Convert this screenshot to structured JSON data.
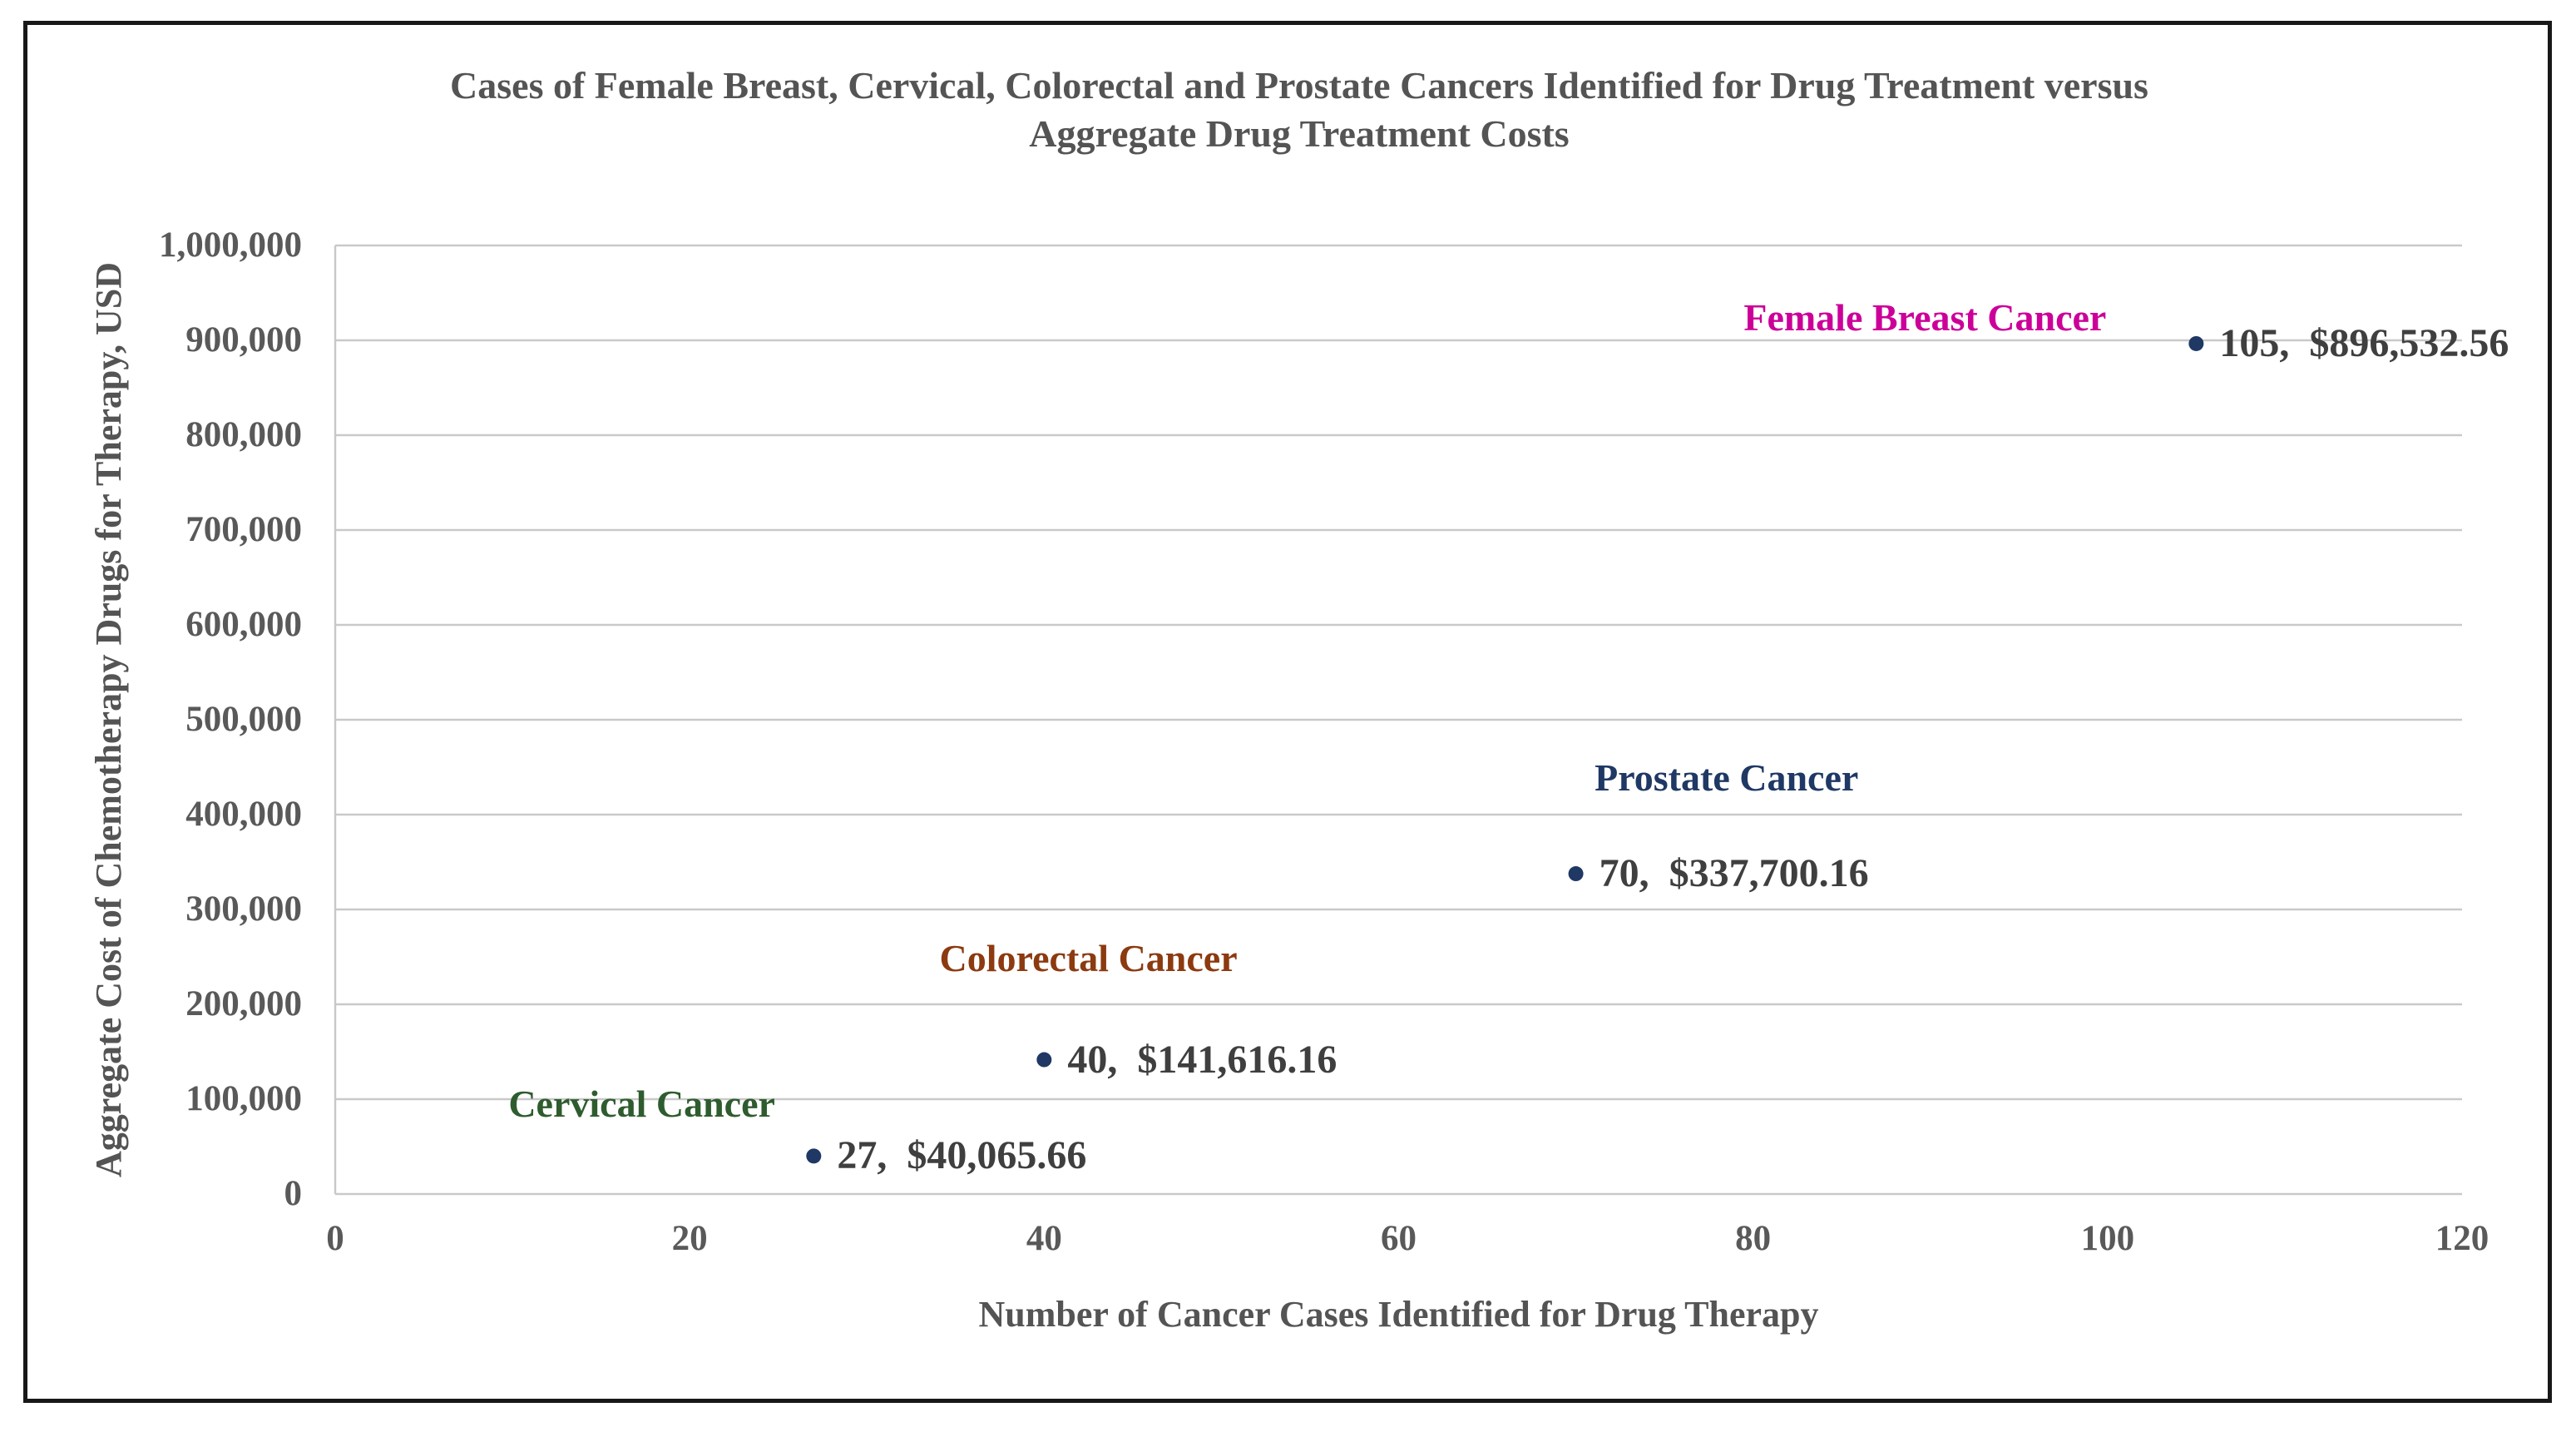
{
  "chart_data": {
    "type": "scatter",
    "title_line1": "Cases of Female Breast, Cervical, Colorectal and Prostate Cancers Identified for Drug Treatment versus",
    "title_line2": "Aggregate Drug Treatment Costs",
    "xlabel": "Number of Cancer Cases Identified for Drug Therapy",
    "ylabel": "Aggregate Cost of Chemotherapy Drugs for Therapy, USD",
    "xlim": [
      0,
      120
    ],
    "ylim": [
      0,
      1000000
    ],
    "grid": "horizontal-only",
    "legend_position": "none",
    "gridline_color": "#C9C9C9",
    "axis_line_color": "#C9C9C9",
    "marker_color": "#1F3864",
    "point_label_color": "#3F3F3F",
    "x_ticks": [
      {
        "value": 0,
        "label": "0"
      },
      {
        "value": 20,
        "label": "20"
      },
      {
        "value": 40,
        "label": "40"
      },
      {
        "value": 60,
        "label": "60"
      },
      {
        "value": 80,
        "label": "80"
      },
      {
        "value": 100,
        "label": "100"
      },
      {
        "value": 120,
        "label": "120"
      }
    ],
    "y_ticks": [
      {
        "value": 0,
        "label": "0"
      },
      {
        "value": 100000,
        "label": "100,000"
      },
      {
        "value": 200000,
        "label": "200,000"
      },
      {
        "value": 300000,
        "label": "300,000"
      },
      {
        "value": 400000,
        "label": "400,000"
      },
      {
        "value": 500000,
        "label": "500,000"
      },
      {
        "value": 600000,
        "label": "600,000"
      },
      {
        "value": 700000,
        "label": "700,000"
      },
      {
        "value": 800000,
        "label": "800,000"
      },
      {
        "value": 900000,
        "label": "900,000"
      },
      {
        "value": 1000000,
        "label": "1,000,000"
      }
    ],
    "series": [
      {
        "name": "Cervical Cancer",
        "color": "#2E5C2E",
        "x": 27,
        "y": 40065.66,
        "point_label": "27,  $40,065.66",
        "name_label_x": 17.3,
        "name_label_y": 95000
      },
      {
        "name": "Colorectal Cancer",
        "color": "#8C3A10",
        "x": 40,
        "y": 141616.16,
        "point_label": "40,  $141,616.16",
        "name_label_x": 42.5,
        "name_label_y": 248000
      },
      {
        "name": "Prostate Cancer",
        "color": "#1F3864",
        "x": 70,
        "y": 337700.16,
        "point_label": "70,  $337,700.16",
        "name_label_x": 78.5,
        "name_label_y": 439000
      },
      {
        "name": "Female Breast Cancer",
        "color": "#CC0099",
        "x": 105,
        "y": 896532.56,
        "point_label": "105,  $896,532.56",
        "name_label_x": 89.7,
        "name_label_y": 924000
      }
    ]
  }
}
